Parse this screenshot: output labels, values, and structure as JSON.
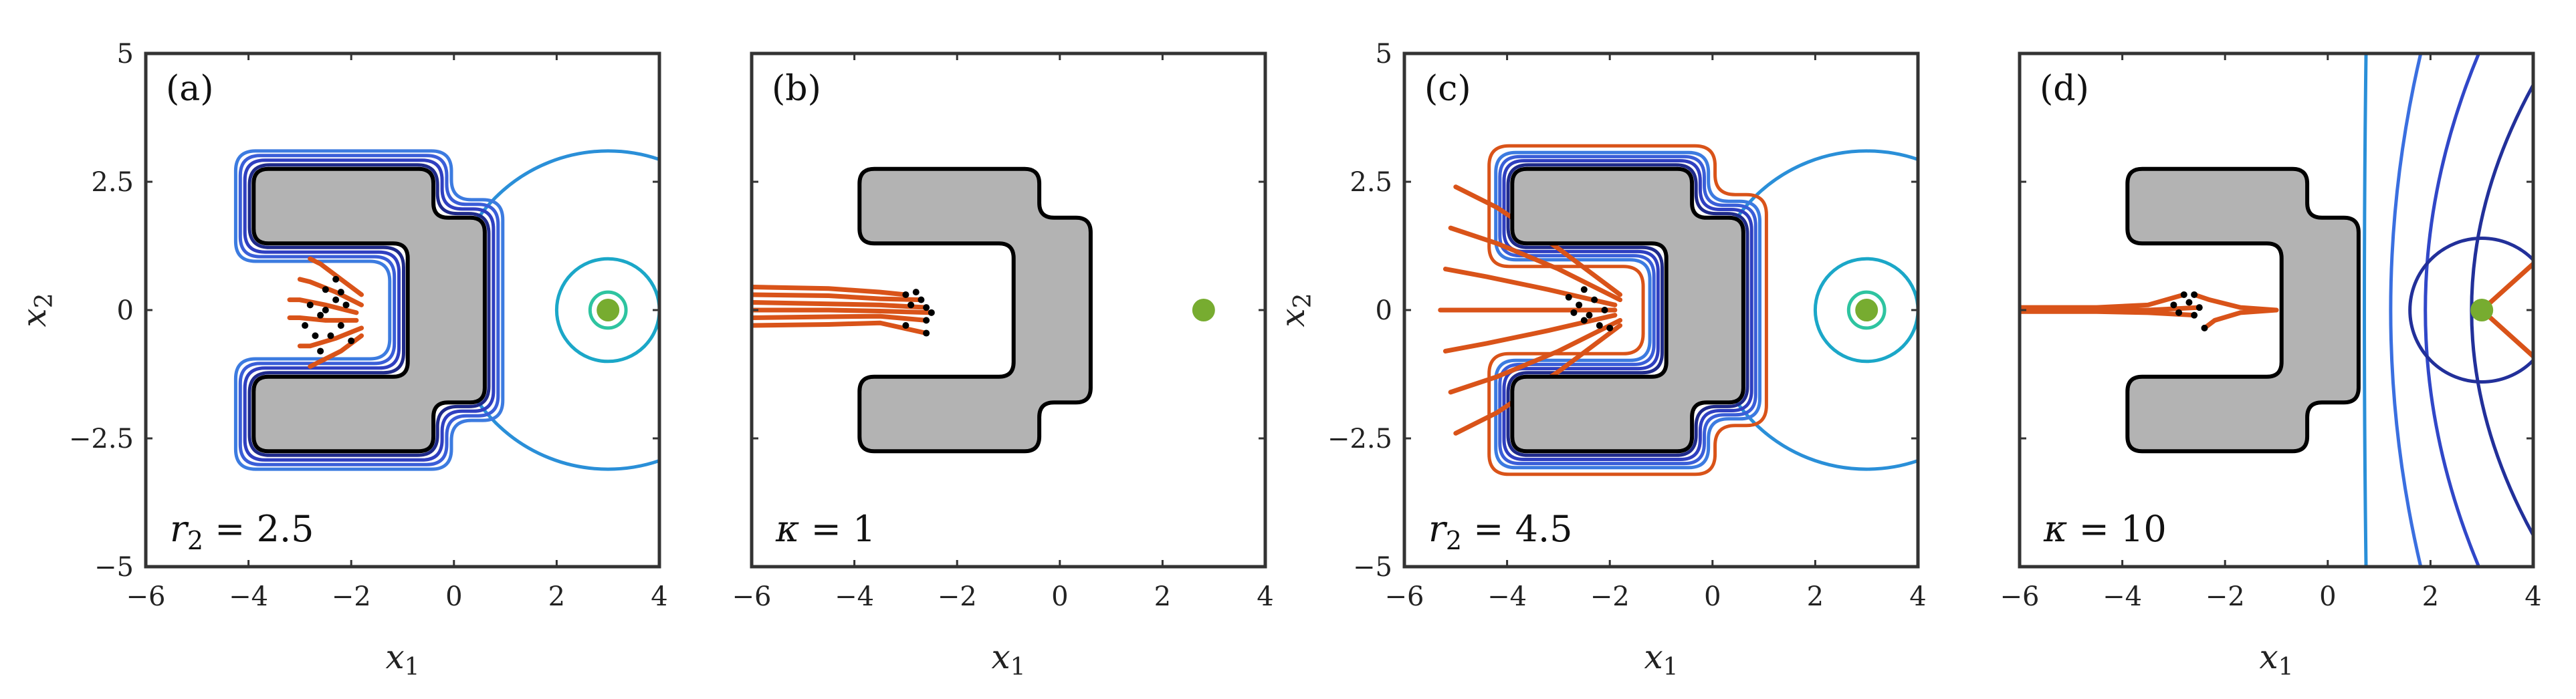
{
  "chart_data": [
    {
      "id": "a",
      "type": "contour",
      "panel_label": "(a)",
      "annotation": "r2 = 2.5",
      "xlabel": "x1",
      "ylabel": "x2",
      "xlim": [
        -6,
        4
      ],
      "ylim": [
        -5,
        5
      ],
      "xticks": [
        -6,
        -4,
        -2,
        0,
        2,
        4
      ],
      "yticks": [
        -5,
        -2.5,
        0,
        2.5,
        5
      ],
      "show_xticklabels": true,
      "show_yticklabels": true,
      "goal": [
        3,
        0
      ],
      "rings": [
        {
          "r": 0.35,
          "color": "#2ec4a0"
        },
        {
          "r": 1.0,
          "color": "#1ba7c8"
        },
        {
          "r": 3.1,
          "color": "#2a8fd8"
        }
      ],
      "offsets": [
        {
          "d": 0.08,
          "color": "#1f2a8a"
        },
        {
          "d": 0.17,
          "color": "#2f3fc0"
        },
        {
          "d": 0.26,
          "color": "#3a5ed8"
        },
        {
          "d": 0.35,
          "color": "#3c7be0"
        }
      ],
      "trajectories": [
        [
          [
            -1.8,
            0.3
          ],
          [
            -2.2,
            0.6
          ],
          [
            -2.6,
            0.9
          ],
          [
            -2.8,
            1.0
          ]
        ],
        [
          [
            -1.8,
            0.1
          ],
          [
            -2.3,
            0.35
          ],
          [
            -2.8,
            0.55
          ],
          [
            -3.0,
            0.6
          ]
        ],
        [
          [
            -1.9,
            -0.05
          ],
          [
            -2.5,
            0.1
          ],
          [
            -3.0,
            0.2
          ],
          [
            -3.2,
            0.2
          ]
        ],
        [
          [
            -1.9,
            -0.2
          ],
          [
            -2.5,
            -0.2
          ],
          [
            -3.0,
            -0.15
          ],
          [
            -3.2,
            -0.15
          ]
        ],
        [
          [
            -1.8,
            -0.35
          ],
          [
            -2.3,
            -0.55
          ],
          [
            -2.8,
            -0.7
          ],
          [
            -3.0,
            -0.7
          ]
        ],
        [
          [
            -1.8,
            -0.5
          ],
          [
            -2.2,
            -0.8
          ],
          [
            -2.6,
            -1.0
          ],
          [
            -2.8,
            -1.1
          ]
        ]
      ],
      "particles": [
        [
          -2.3,
          0.2
        ],
        [
          -2.5,
          0.4
        ],
        [
          -2.1,
          0.1
        ],
        [
          -2.6,
          -0.1
        ],
        [
          -2.2,
          -0.3
        ],
        [
          -2.8,
          0.1
        ],
        [
          -2.4,
          -0.5
        ],
        [
          -2.9,
          -0.3
        ],
        [
          -2.0,
          -0.6
        ],
        [
          -2.6,
          -0.8
        ],
        [
          -2.3,
          0.6
        ],
        [
          -2.7,
          -0.5
        ],
        [
          -2.5,
          0.0
        ],
        [
          -2.2,
          0.35
        ]
      ]
    },
    {
      "id": "b",
      "type": "contour",
      "panel_label": "(b)",
      "annotation": "κ = 1",
      "xlabel": "x1",
      "ylabel": "",
      "xlim": [
        -6,
        4
      ],
      "ylim": [
        -5,
        5
      ],
      "xticks": [
        -6,
        -4,
        -2,
        0,
        2,
        4
      ],
      "yticks": [
        -5,
        -2.5,
        0,
        2.5,
        5
      ],
      "show_xticklabels": true,
      "show_yticklabels": false,
      "goal": [
        2.8,
        0
      ],
      "rings": [],
      "offsets": [],
      "trajectories": [
        [
          [
            -6,
            0.45
          ],
          [
            -4.5,
            0.42
          ],
          [
            -3.5,
            0.35
          ],
          [
            -3.0,
            0.3
          ]
        ],
        [
          [
            -6,
            0.3
          ],
          [
            -4.5,
            0.28
          ],
          [
            -3.5,
            0.22
          ],
          [
            -2.7,
            0.2
          ]
        ],
        [
          [
            -6,
            0.15
          ],
          [
            -4.5,
            0.12
          ],
          [
            -3.5,
            0.1
          ],
          [
            -2.6,
            0.05
          ]
        ],
        [
          [
            -6,
            0.0
          ],
          [
            -4.5,
            0.0
          ],
          [
            -3.5,
            -0.02
          ],
          [
            -2.5,
            -0.05
          ]
        ],
        [
          [
            -6,
            -0.15
          ],
          [
            -4.5,
            -0.13
          ],
          [
            -3.5,
            -0.12
          ],
          [
            -2.6,
            -0.2
          ]
        ],
        [
          [
            -6,
            -0.3
          ],
          [
            -4.5,
            -0.28
          ],
          [
            -3.5,
            -0.25
          ],
          [
            -2.6,
            -0.45
          ]
        ]
      ],
      "particles": [
        [
          -3.0,
          0.3
        ],
        [
          -2.7,
          0.2
        ],
        [
          -2.6,
          0.05
        ],
        [
          -2.5,
          -0.05
        ],
        [
          -2.6,
          -0.2
        ],
        [
          -2.6,
          -0.45
        ],
        [
          -2.9,
          0.1
        ],
        [
          -3.0,
          -0.3
        ],
        [
          -2.8,
          0.35
        ]
      ]
    },
    {
      "id": "c",
      "type": "contour",
      "panel_label": "(c)",
      "annotation": "r2 = 4.5",
      "xlabel": "x1",
      "ylabel": "x2",
      "xlim": [
        -6,
        4
      ],
      "ylim": [
        -5,
        5
      ],
      "xticks": [
        -6,
        -4,
        -2,
        0,
        2,
        4
      ],
      "yticks": [
        -5,
        -2.5,
        0,
        2.5,
        5
      ],
      "show_xticklabels": true,
      "show_yticklabels": true,
      "goal": [
        3,
        0
      ],
      "rings": [
        {
          "r": 0.35,
          "color": "#2ec4a0"
        },
        {
          "r": 1.0,
          "color": "#1ba7c8"
        },
        {
          "r": 3.1,
          "color": "#2a8fd8"
        }
      ],
      "offsets": [
        {
          "d": 0.08,
          "color": "#1f2a8a"
        },
        {
          "d": 0.16,
          "color": "#2f3fc0"
        },
        {
          "d": 0.24,
          "color": "#3a5ed8"
        },
        {
          "d": 0.32,
          "color": "#3c7be0"
        },
        {
          "d": 0.45,
          "color": "#d95319"
        }
      ],
      "trajectories": [
        [
          [
            -1.8,
            0.3
          ],
          [
            -3.0,
            1.2
          ],
          [
            -4.2,
            2.0
          ],
          [
            -5.0,
            2.4
          ]
        ],
        [
          [
            -1.8,
            0.2
          ],
          [
            -3.0,
            0.8
          ],
          [
            -4.2,
            1.3
          ],
          [
            -5.1,
            1.6
          ]
        ],
        [
          [
            -1.9,
            0.1
          ],
          [
            -3.2,
            0.4
          ],
          [
            -4.4,
            0.65
          ],
          [
            -5.2,
            0.8
          ]
        ],
        [
          [
            -1.9,
            0.0
          ],
          [
            -3.2,
            0.0
          ],
          [
            -4.4,
            0.0
          ],
          [
            -5.3,
            0.0
          ]
        ],
        [
          [
            -1.9,
            -0.1
          ],
          [
            -3.2,
            -0.4
          ],
          [
            -4.4,
            -0.65
          ],
          [
            -5.2,
            -0.8
          ]
        ],
        [
          [
            -1.8,
            -0.2
          ],
          [
            -3.0,
            -0.8
          ],
          [
            -4.2,
            -1.3
          ],
          [
            -5.1,
            -1.6
          ]
        ],
        [
          [
            -1.8,
            -0.3
          ],
          [
            -3.0,
            -1.2
          ],
          [
            -4.2,
            -2.0
          ],
          [
            -5.0,
            -2.4
          ]
        ]
      ],
      "particles": [
        [
          -2.5,
          0.4
        ],
        [
          -2.3,
          0.2
        ],
        [
          -2.6,
          0.1
        ],
        [
          -2.1,
          0.0
        ],
        [
          -2.4,
          -0.1
        ],
        [
          -2.7,
          -0.05
        ],
        [
          -2.2,
          -0.3
        ],
        [
          -2.0,
          -0.35
        ],
        [
          -2.5,
          -0.2
        ],
        [
          -2.8,
          0.25
        ]
      ]
    },
    {
      "id": "d",
      "type": "contour",
      "panel_label": "(d)",
      "annotation": "κ = 10",
      "xlabel": "x1",
      "ylabel": "",
      "xlim": [
        -6,
        4
      ],
      "ylim": [
        -5,
        5
      ],
      "xticks": [
        -6,
        -4,
        -2,
        0,
        2,
        4
      ],
      "yticks": [
        -5,
        -2.5,
        0,
        2.5,
        5
      ],
      "show_xticklabels": true,
      "show_yticklabels": false,
      "goal": [
        3,
        0
      ],
      "rings": [],
      "offsets": [],
      "trajectories": [
        [
          [
            -6,
            0.05
          ],
          [
            -4.5,
            0.05
          ],
          [
            -3.5,
            0.1
          ],
          [
            -2.8,
            0.3
          ]
        ],
        [
          [
            -6,
            0.0
          ],
          [
            -4.5,
            0.0
          ],
          [
            -3.5,
            0.0
          ],
          [
            -2.5,
            0.05
          ]
        ],
        [
          [
            -6,
            -0.03
          ],
          [
            -4.5,
            -0.03
          ],
          [
            -3.5,
            -0.05
          ],
          [
            -2.6,
            -0.1
          ]
        ],
        [
          [
            -1.0,
            0.0
          ],
          [
            -1.7,
            0.05
          ],
          [
            -2.3,
            0.2
          ],
          [
            -2.6,
            0.3
          ]
        ],
        [
          [
            -1.0,
            0.0
          ],
          [
            -1.7,
            -0.05
          ],
          [
            -2.2,
            -0.2
          ],
          [
            -2.4,
            -0.35
          ]
        ]
      ],
      "particles": [
        [
          -2.8,
          0.3
        ],
        [
          -2.5,
          0.05
        ],
        [
          -2.6,
          -0.1
        ],
        [
          -2.6,
          0.3
        ],
        [
          -2.4,
          -0.35
        ],
        [
          -2.9,
          -0.05
        ],
        [
          -2.7,
          0.15
        ],
        [
          -3.0,
          0.1
        ]
      ]
    }
  ]
}
